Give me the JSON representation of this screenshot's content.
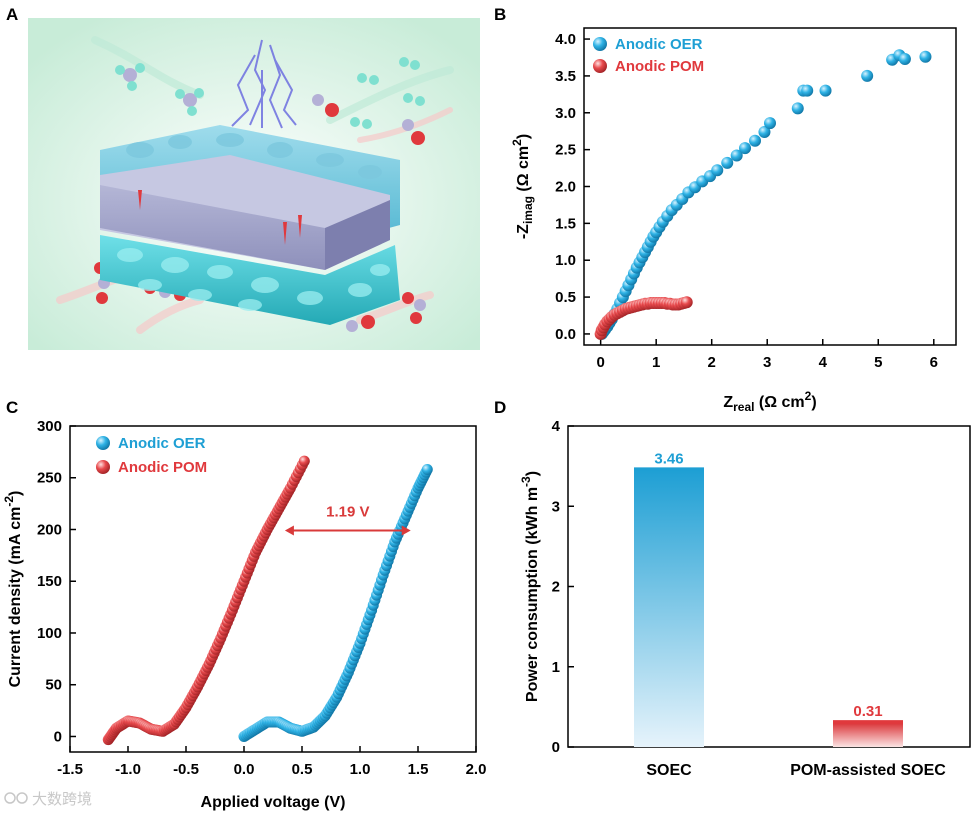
{
  "watermark": "大数跨境",
  "panels": {
    "A": {
      "label": "A",
      "illustration": "schematic of a solid-oxide electrolysis cell: porous anode layer on top, dense membrane in the middle, porous cathode layer below, with gas molecules flowing in and out"
    },
    "B": {
      "label": "B"
    },
    "C": {
      "label": "C",
      "annotation": "1.19 V"
    },
    "D": {
      "label": "D"
    }
  },
  "colors": {
    "oer": "#1e9fd4",
    "pom": "#e0393d",
    "arrow": "#d93a3a"
  },
  "chart_data": [
    {
      "id": "B",
      "type": "scatter",
      "title": "",
      "xlabel": "Z_real (Ω cm²)",
      "xlabel_main": "Z",
      "xlabel_sub": "real",
      "xlabel_rest": " (Ω cm",
      "xlabel_sup": "2",
      "xlabel_close": ")",
      "ylabel": "-Z_imag (Ω cm²)",
      "ylabel_main": "-Z",
      "ylabel_sub": "imag",
      "ylabel_rest": " (Ω cm",
      "ylabel_sup": "2",
      "ylabel_close": ")",
      "xlim": [
        -0.3,
        6.4
      ],
      "ylim": [
        -0.15,
        4.15
      ],
      "xticks": [
        0,
        1,
        2,
        3,
        4,
        5,
        6
      ],
      "yticks": [
        0.0,
        0.5,
        1.0,
        1.5,
        2.0,
        2.5,
        3.0,
        3.5,
        4.0
      ],
      "ytick_labels": [
        "0.0",
        "0.5",
        "1.0",
        "1.5",
        "2.0",
        "2.5",
        "3.0",
        "3.5",
        "4.0"
      ],
      "legend_position": "top-left",
      "series": [
        {
          "name": "Anodic OER",
          "color": "#1e9fd4",
          "x": [
            0.02,
            0.05,
            0.08,
            0.12,
            0.16,
            0.2,
            0.25,
            0.3,
            0.35,
            0.4,
            0.45,
            0.5,
            0.55,
            0.6,
            0.65,
            0.7,
            0.75,
            0.8,
            0.85,
            0.9,
            0.95,
            1.0,
            1.06,
            1.12,
            1.2,
            1.28,
            1.37,
            1.47,
            1.58,
            1.7,
            1.83,
            1.97,
            2.1,
            2.28,
            2.45,
            2.6,
            2.78,
            2.95,
            3.05,
            3.55,
            3.65,
            3.72,
            4.05,
            4.8,
            5.25,
            5.38,
            5.48,
            5.85
          ],
          "y": [
            0.0,
            0.03,
            0.06,
            0.1,
            0.15,
            0.2,
            0.27,
            0.34,
            0.42,
            0.5,
            0.58,
            0.66,
            0.74,
            0.82,
            0.9,
            0.97,
            1.04,
            1.11,
            1.18,
            1.25,
            1.32,
            1.38,
            1.45,
            1.52,
            1.6,
            1.68,
            1.75,
            1.83,
            1.92,
            1.99,
            2.07,
            2.14,
            2.22,
            2.32,
            2.42,
            2.52,
            2.62,
            2.74,
            2.86,
            3.06,
            3.3,
            3.3,
            3.3,
            3.5,
            3.72,
            3.78,
            3.73,
            3.76
          ]
        },
        {
          "name": "Anodic POM",
          "color": "#e0393d",
          "x": [
            0.0,
            0.02,
            0.05,
            0.08,
            0.12,
            0.16,
            0.2,
            0.25,
            0.3,
            0.35,
            0.4,
            0.45,
            0.5,
            0.55,
            0.6,
            0.65,
            0.7,
            0.75,
            0.8,
            0.85,
            0.9,
            0.95,
            1.0,
            1.05,
            1.1,
            1.15,
            1.2,
            1.25,
            1.3,
            1.35,
            1.4,
            1.45,
            1.5,
            1.55
          ],
          "y": [
            0.0,
            0.05,
            0.09,
            0.13,
            0.17,
            0.2,
            0.23,
            0.26,
            0.28,
            0.3,
            0.32,
            0.34,
            0.35,
            0.36,
            0.37,
            0.38,
            0.39,
            0.4,
            0.41,
            0.41,
            0.42,
            0.42,
            0.42,
            0.42,
            0.42,
            0.42,
            0.41,
            0.41,
            0.4,
            0.4,
            0.4,
            0.41,
            0.42,
            0.43
          ]
        }
      ]
    },
    {
      "id": "C",
      "type": "scatter",
      "title": "",
      "xlabel": "Applied voltage (V)",
      "ylabel": "Current density (mA cm⁻²)",
      "ylabel_main": "Current density (mA cm",
      "ylabel_sup": "-2",
      "ylabel_close": ")",
      "xlim": [
        -1.5,
        2.0
      ],
      "ylim": [
        -15,
        300
      ],
      "xticks": [
        -1.5,
        -1.0,
        -0.5,
        0.0,
        0.5,
        1.0,
        1.5,
        2.0
      ],
      "xtick_labels": [
        "-1.5",
        "-1.0",
        "-0.5",
        "0.0",
        "0.5",
        "1.0",
        "1.5",
        "2.0"
      ],
      "yticks": [
        0,
        50,
        100,
        150,
        200,
        250,
        300
      ],
      "legend_position": "top-left",
      "annotation": {
        "text": "1.19 V",
        "x_from": 0.37,
        "x_to": 1.42,
        "y": 199
      },
      "series": [
        {
          "name": "Anodic OER",
          "color": "#1e9fd4",
          "x": [
            0.0,
            0.1,
            0.2,
            0.3,
            0.4,
            0.5,
            0.6,
            0.7,
            0.8,
            0.9,
            1.0,
            1.1,
            1.2,
            1.3,
            1.4,
            1.5,
            1.58
          ],
          "y": [
            0,
            7,
            14,
            14,
            8,
            5,
            9,
            20,
            38,
            62,
            90,
            122,
            156,
            188,
            214,
            240,
            258
          ]
        },
        {
          "name": "Anodic POM",
          "color": "#e0393d",
          "x": [
            -1.17,
            -1.1,
            -1.0,
            -0.9,
            -0.8,
            -0.7,
            -0.6,
            -0.5,
            -0.4,
            -0.3,
            -0.2,
            -0.1,
            0.0,
            0.1,
            0.2,
            0.3,
            0.4,
            0.52
          ],
          "y": [
            -3,
            8,
            15,
            13,
            7,
            5,
            12,
            28,
            48,
            70,
            95,
            122,
            150,
            178,
            200,
            220,
            240,
            266
          ]
        }
      ]
    },
    {
      "id": "D",
      "type": "bar",
      "title": "",
      "xlabel": "",
      "ylabel": "Power consumption (kWh m⁻³)",
      "ylabel_main": "Power consumption (kWh m",
      "ylabel_sup": "-3",
      "ylabel_close": ")",
      "categories": [
        "SOEC",
        "POM-assisted SOEC"
      ],
      "values": [
        3.46,
        0.31
      ],
      "value_labels": [
        "3.46",
        "0.31"
      ],
      "colors": [
        "#1e9fd4",
        "#e0393d"
      ],
      "ylim": [
        0,
        4
      ],
      "yticks": [
        0,
        1,
        2,
        3,
        4
      ]
    }
  ]
}
